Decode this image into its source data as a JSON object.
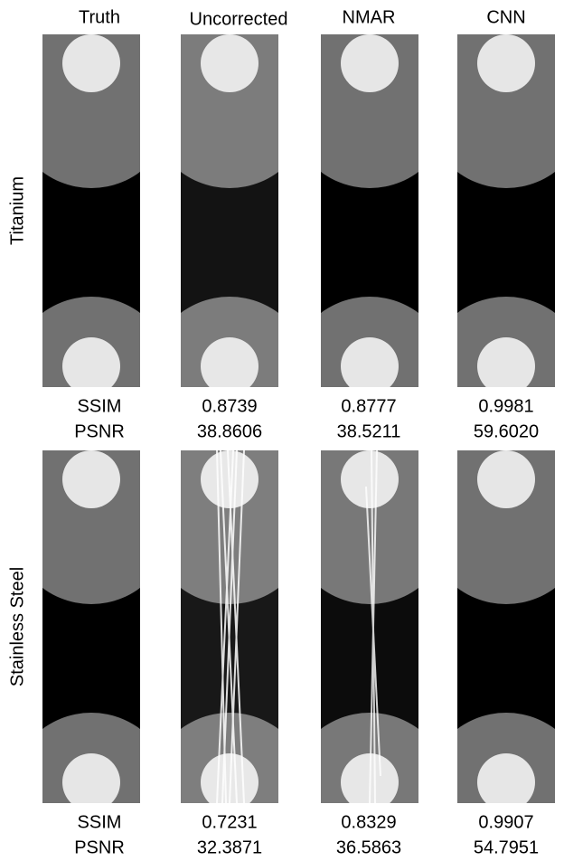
{
  "columns": [
    "Truth",
    "Uncorrected",
    "NMAR",
    "CNN"
  ],
  "rows": [
    {
      "label": "Titanium",
      "metrics": [
        {
          "name": "SSIM",
          "values": [
            "0.8739",
            "0.8777",
            "0.9981"
          ]
        },
        {
          "name": "PSNR",
          "values": [
            "38.8606",
            "38.5211",
            "59.6020"
          ]
        }
      ]
    },
    {
      "label": "Stainless Steel",
      "metrics": [
        {
          "name": "SSIM",
          "values": [
            "0.7231",
            "0.8329",
            "0.9907"
          ]
        },
        {
          "name": "PSNR",
          "values": [
            "32.3871",
            "36.5863",
            "54.7951"
          ]
        }
      ]
    }
  ]
}
